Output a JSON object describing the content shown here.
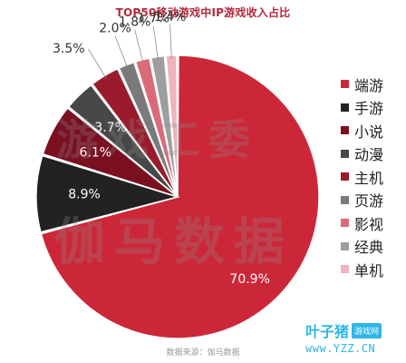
{
  "watermark": {
    "line1": "游戏工委",
    "line2": "伽马数据"
  },
  "source": "数据来源：伽马数据",
  "brand": {
    "main": "叶子猪",
    "tag": "游戏网",
    "url": "www.YZZ.CN"
  },
  "chart_data": {
    "type": "pie",
    "title": "TOP50移动游戏中IP游戏收入占比",
    "slices": [
      {
        "label": "端游",
        "value": 70.9,
        "value_label": "70.9%",
        "color": "#cc2738"
      },
      {
        "label": "手游",
        "value": 8.9,
        "value_label": "8.9%",
        "color": "#222222"
      },
      {
        "label": "小说",
        "value": 6.1,
        "value_label": "6.1%",
        "color": "#7a1020"
      },
      {
        "label": "动漫",
        "value": 3.7,
        "value_label": "3.7%",
        "color": "#474747"
      },
      {
        "label": "主机",
        "value": 3.5,
        "value_label": "3.5%",
        "color": "#9a1c2c"
      },
      {
        "label": "页游",
        "value": 2.0,
        "value_label": "2.0%",
        "color": "#7a7a7a"
      },
      {
        "label": "影视",
        "value": 1.8,
        "value_label": "1.8%",
        "color": "#db6a79"
      },
      {
        "label": "经典",
        "value": 1.7,
        "value_label": "1.7%",
        "color": "#9e9e9e"
      },
      {
        "label": "单机",
        "value": 1.4,
        "value_label": "1.4%",
        "color": "#eeb3bd"
      }
    ],
    "legend_position": "right"
  }
}
